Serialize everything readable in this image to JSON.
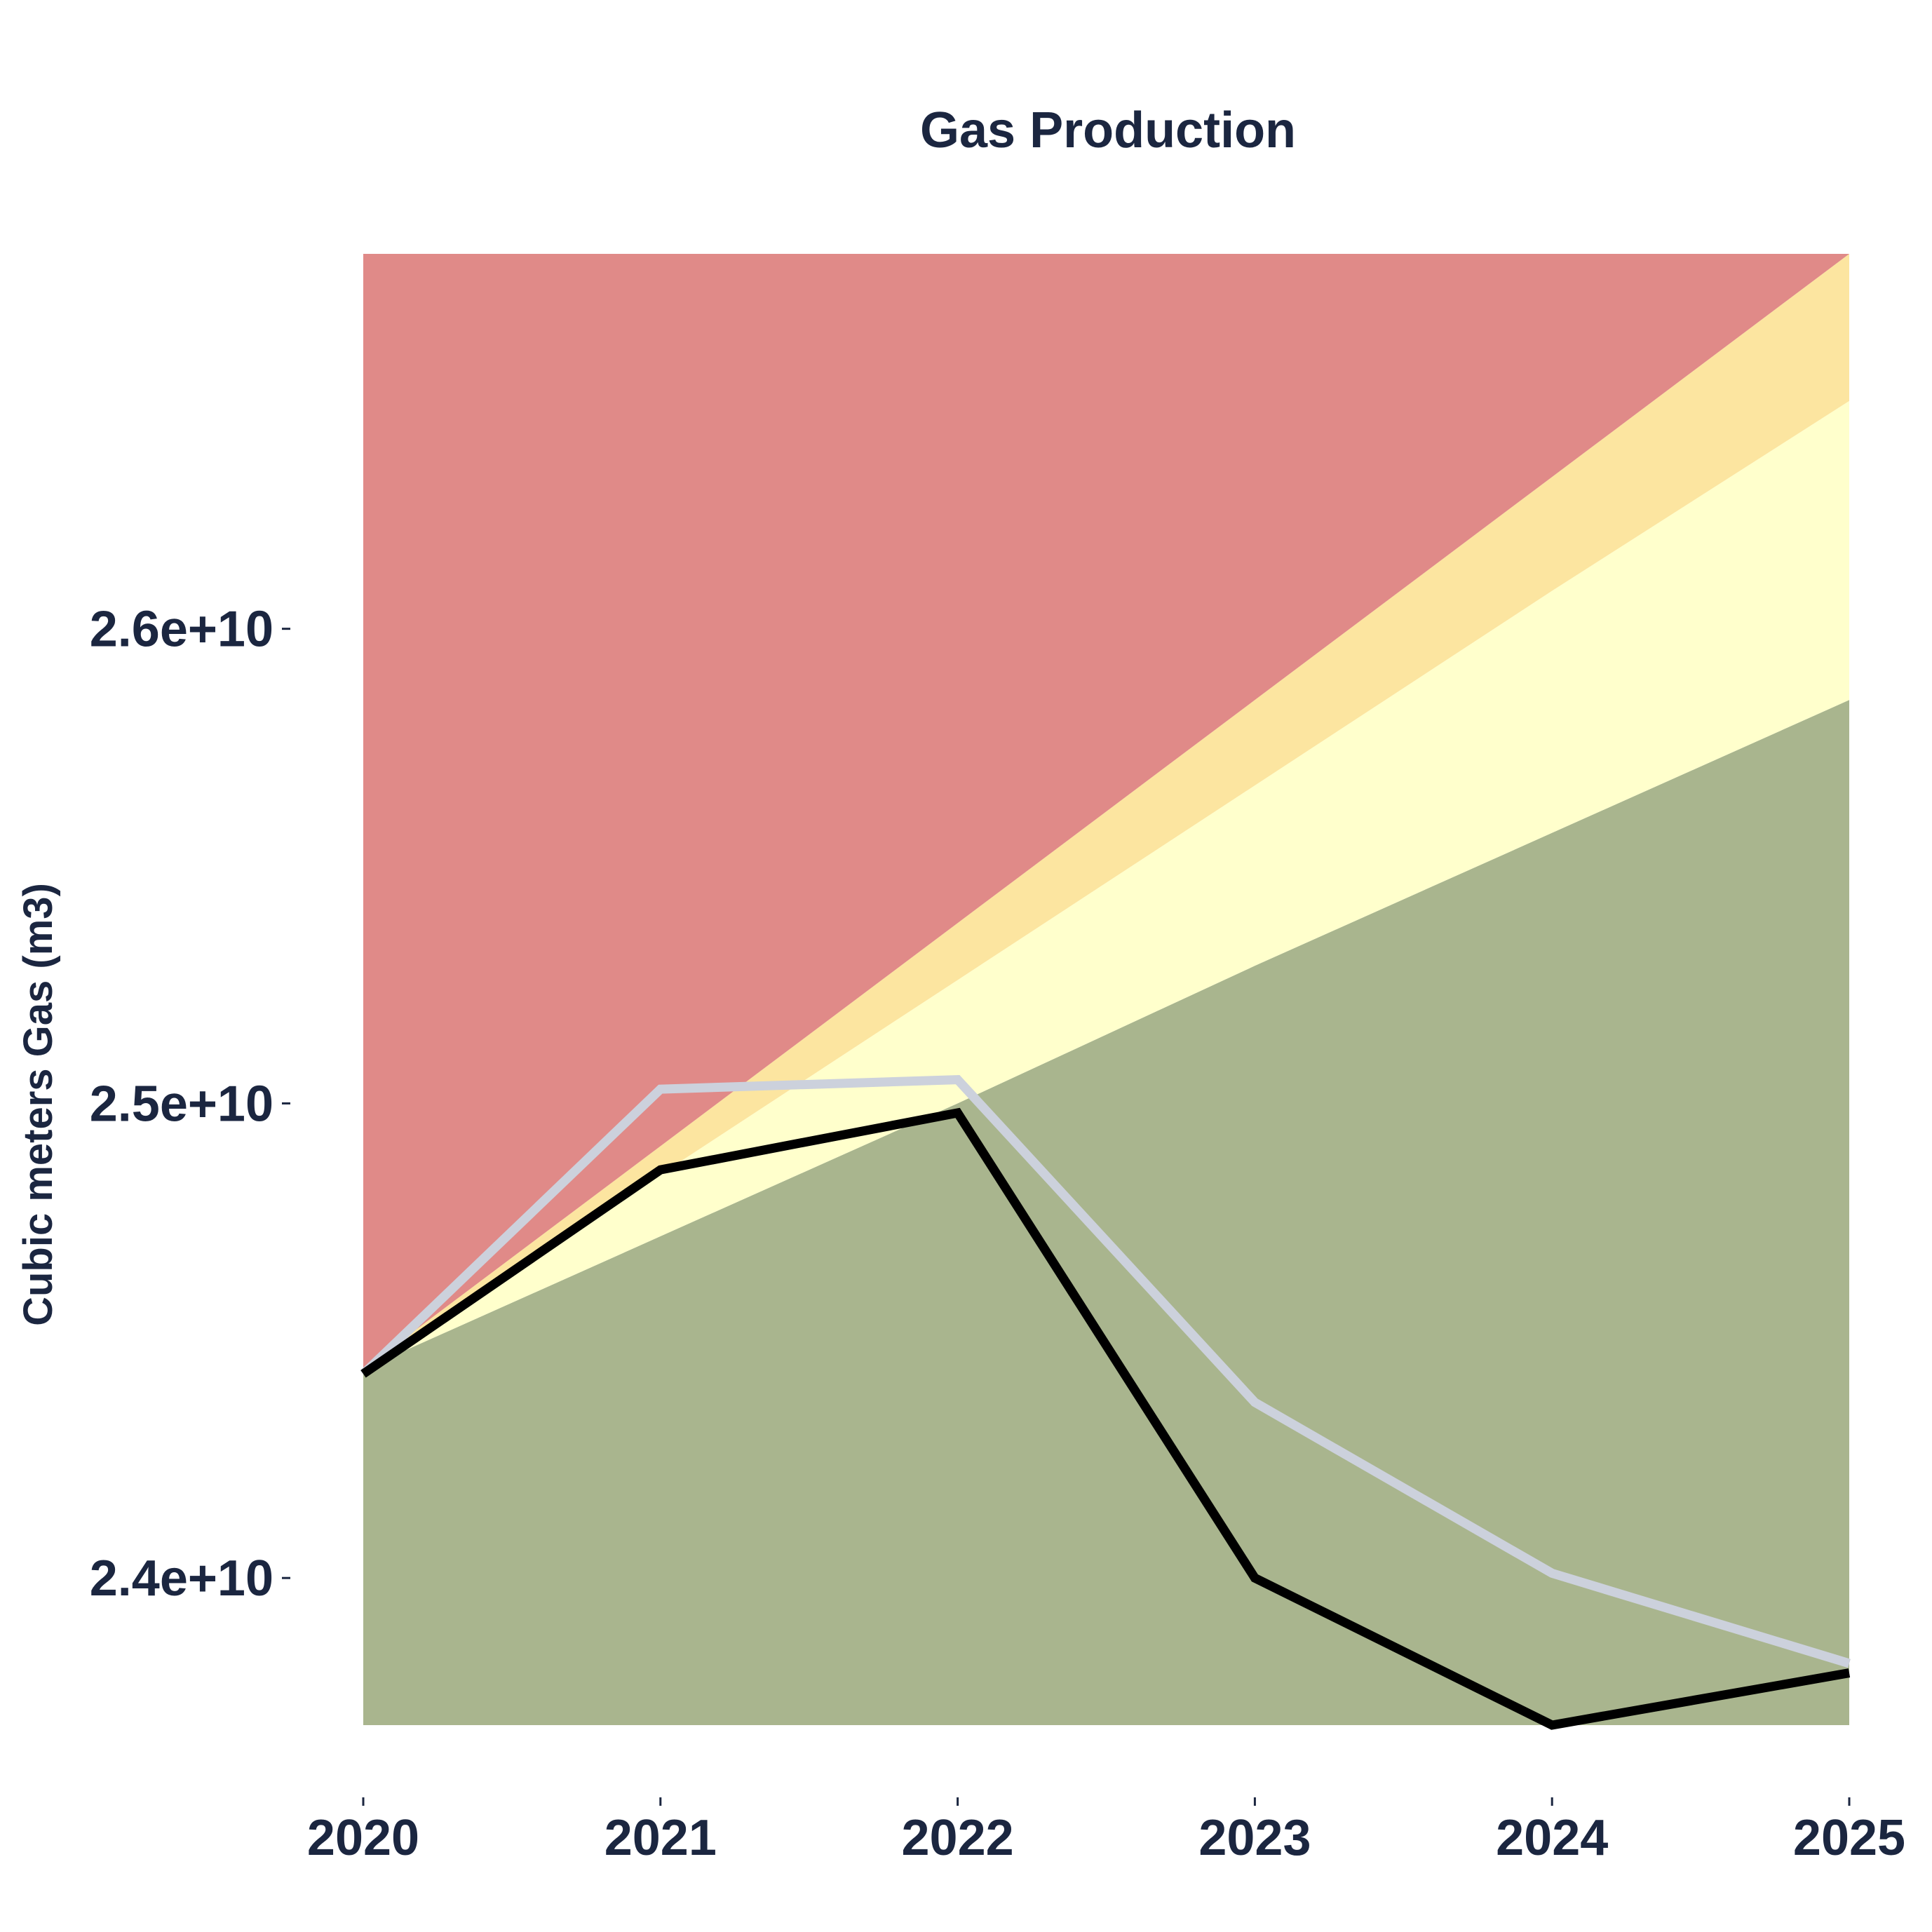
{
  "chart_data": {
    "type": "area",
    "title": "Gas Production",
    "xlabel": "",
    "ylabel": "Cubic meters Gas (m3)",
    "x": [
      2020,
      2021,
      2022,
      2023,
      2024,
      2025
    ],
    "x_tick_labels": [
      "2020",
      "2021",
      "2022",
      "2023",
      "2024",
      "2025"
    ],
    "y_ticks": [
      24000000000.0,
      25000000000.0,
      26000000000.0
    ],
    "y_tick_labels": [
      "2.4e+10",
      "2.5e+10",
      "2.6e+10"
    ],
    "xlim": [
      2020,
      2025
    ],
    "ylim": [
      23690000000,
      26790000000
    ],
    "grid": false,
    "bands": [
      {
        "color": "#a9b58e",
        "lower": [
          23690000000,
          23690000000,
          23690000000,
          23690000000,
          23690000000,
          23690000000
        ],
        "upper": [
          24440000000,
          24720000000,
          25000000000,
          25290000000,
          25570000000,
          25850000000
        ]
      },
      {
        "color": "#ffffcc",
        "lower": [
          24440000000,
          24720000000,
          25000000000,
          25290000000,
          25570000000,
          25850000000
        ],
        "upper": [
          24440000000,
          24850000000,
          25260000000,
          25670000000,
          26080000000,
          26480000000
        ]
      },
      {
        "color": "#fce5a0",
        "lower": [
          24440000000,
          24850000000,
          25260000000,
          25670000000,
          26080000000,
          26480000000
        ],
        "upper": [
          24440000000,
          24910000000,
          25380000000,
          25850000000,
          26320000000,
          26790000000
        ]
      },
      {
        "color": "#e08a88",
        "lower": [
          24440000000,
          24910000000,
          25380000000,
          25850000000,
          26320000000,
          26790000000
        ],
        "upper": [
          26790000000,
          26790000000,
          26790000000,
          26790000000,
          26790000000,
          26790000000
        ]
      }
    ],
    "series": [
      {
        "color": "#ccd1dc",
        "values": [
          24430000000,
          25030000000,
          25050000000,
          24370000000,
          24010000000,
          23820000000
        ]
      },
      {
        "color": "#000000",
        "values": [
          24430000000,
          24860000000,
          24980000000,
          24000000000,
          23690000000,
          23800000000
        ]
      }
    ]
  }
}
